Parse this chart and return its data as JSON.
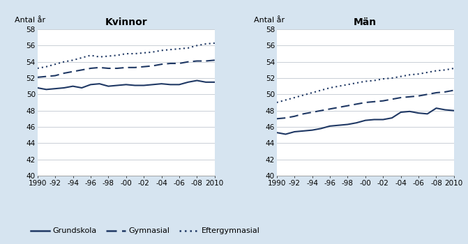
{
  "years": [
    1990,
    1991,
    1992,
    1993,
    1994,
    1995,
    1996,
    1997,
    1998,
    1999,
    2000,
    2001,
    2002,
    2003,
    2004,
    2005,
    2006,
    2007,
    2008,
    2009,
    2010
  ],
  "kvinnor": {
    "grundskola": [
      50.8,
      50.6,
      50.7,
      50.8,
      51.0,
      50.8,
      51.2,
      51.3,
      51.0,
      51.1,
      51.2,
      51.1,
      51.1,
      51.2,
      51.3,
      51.2,
      51.2,
      51.5,
      51.7,
      51.5,
      51.5
    ],
    "gymnasial": [
      52.1,
      52.2,
      52.3,
      52.6,
      52.8,
      53.0,
      53.2,
      53.3,
      53.2,
      53.2,
      53.3,
      53.3,
      53.4,
      53.5,
      53.7,
      53.8,
      53.8,
      54.0,
      54.1,
      54.1,
      54.2
    ],
    "eftergymnasial": [
      53.2,
      53.4,
      53.7,
      54.0,
      54.2,
      54.5,
      54.8,
      54.6,
      54.7,
      54.8,
      55.0,
      55.0,
      55.1,
      55.2,
      55.4,
      55.5,
      55.6,
      55.7,
      56.0,
      56.2,
      56.3
    ]
  },
  "man": {
    "grundskola": [
      45.3,
      45.1,
      45.4,
      45.5,
      45.6,
      45.8,
      46.1,
      46.2,
      46.3,
      46.5,
      46.8,
      46.9,
      46.9,
      47.1,
      47.8,
      47.9,
      47.7,
      47.6,
      48.3,
      48.1,
      48.0
    ],
    "gymnasial": [
      47.0,
      47.1,
      47.3,
      47.6,
      47.8,
      48.0,
      48.2,
      48.4,
      48.6,
      48.8,
      49.0,
      49.1,
      49.2,
      49.4,
      49.6,
      49.7,
      49.8,
      50.0,
      50.2,
      50.3,
      50.5
    ],
    "eftergymnasial": [
      49.0,
      49.3,
      49.6,
      49.9,
      50.2,
      50.5,
      50.8,
      51.0,
      51.2,
      51.4,
      51.6,
      51.7,
      51.9,
      52.0,
      52.2,
      52.4,
      52.5,
      52.7,
      52.9,
      53.0,
      53.2
    ]
  },
  "titles": [
    "Kvinnor",
    "Män"
  ],
  "ylabel": "Antal år",
  "ylim": [
    40,
    58
  ],
  "yticks": [
    40,
    42,
    44,
    46,
    48,
    50,
    52,
    54,
    56,
    58
  ],
  "xtick_labels": [
    "1990",
    "-92",
    "-94",
    "-96",
    "-98",
    "-00",
    "-02",
    "-04",
    "-06",
    "-08",
    "2010"
  ],
  "line_color": "#1f3864",
  "legend_labels": [
    "Grundskola",
    "Gymnasial",
    "Eftergymnasial"
  ],
  "bg_color": "#d6e4f0",
  "plot_bg_color": "#ffffff",
  "title_fontsize": 10,
  "label_fontsize": 8,
  "tick_fontsize": 7.5
}
